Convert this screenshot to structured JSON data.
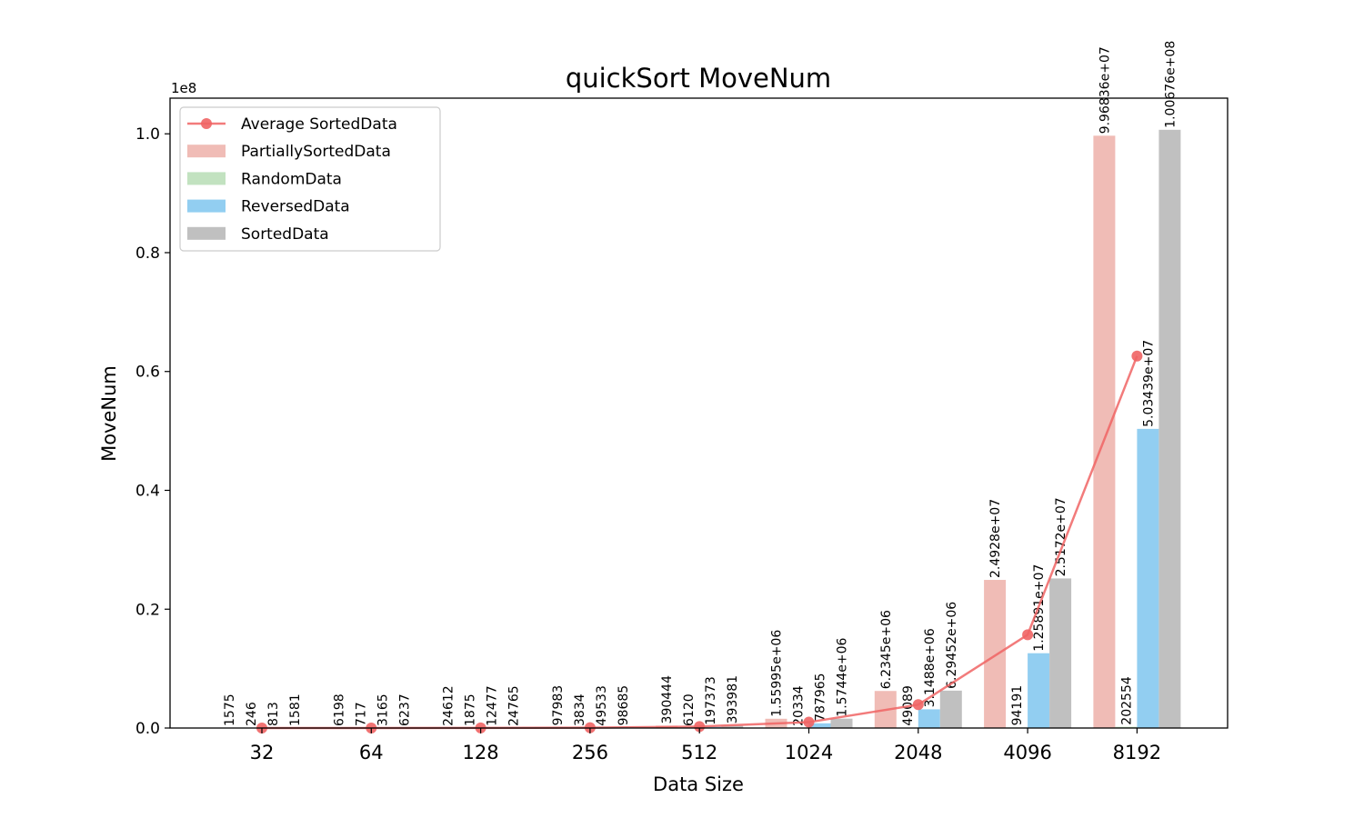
{
  "chart_data": {
    "type": "bar",
    "title": "quickSort MoveNum",
    "xlabel": "Data Size",
    "ylabel": "MoveNum",
    "y_scale_label": "1e8",
    "categories": [
      "32",
      "64",
      "128",
      "256",
      "512",
      "1024",
      "2048",
      "4096",
      "8192"
    ],
    "ylim": [
      0,
      1.06
    ],
    "yticks": [
      0.0,
      0.2,
      0.4,
      0.6,
      0.8,
      1.0
    ],
    "ytick_labels": [
      "0.0",
      "0.2",
      "0.4",
      "0.6",
      "0.8",
      "1.0"
    ],
    "series": [
      {
        "name": "PartiallySortedData",
        "color": "#f0bcb6",
        "values": [
          1575,
          6198,
          24612,
          97983,
          390444,
          1559950,
          6234500,
          24928000,
          99683600
        ],
        "labels": [
          "1575",
          "6198",
          "24612",
          "97983",
          "390444",
          "1.55995e+06",
          "6.2345e+06",
          "2.4928e+07",
          "9.96836e+07"
        ]
      },
      {
        "name": "RandomData",
        "color": "#c2e2c0",
        "values": [
          246,
          717,
          1875,
          3834,
          6120,
          20334,
          49089,
          94191,
          202554
        ],
        "labels": [
          "246",
          "717",
          "1875",
          "3834",
          "6120",
          "20334",
          "49089",
          "94191",
          "202554"
        ]
      },
      {
        "name": "ReversedData",
        "color": "#92cef1",
        "values": [
          813,
          3165,
          12477,
          49533,
          197373,
          787965,
          3148800,
          12589100,
          50343900
        ],
        "labels": [
          "813",
          "3165",
          "12477",
          "49533",
          "197373",
          "787965",
          "3.1488e+06",
          "1.25891e+07",
          "5.03439e+07"
        ]
      },
      {
        "name": "SortedData",
        "color": "#c0c0c0",
        "values": [
          1581,
          6237,
          24765,
          98685,
          393981,
          1574400,
          6294520,
          25172000,
          100676000
        ],
        "labels": [
          "1581",
          "6237",
          "24765",
          "98685",
          "393981",
          "1.5744e+06",
          "6.29452e+06",
          "2.5172e+07",
          "1.00676e+08"
        ]
      }
    ],
    "line_series": {
      "name": "Average SortedData",
      "color": "#f06464",
      "values": [
        1054,
        4079,
        15932,
        62509,
        246980,
        985650,
        3931700,
        15695800,
        62602800
      ]
    },
    "legend": {
      "placement": "top-left",
      "entries": [
        "Average SortedData",
        "PartiallySortedData",
        "RandomData",
        "ReversedData",
        "SortedData"
      ]
    }
  }
}
